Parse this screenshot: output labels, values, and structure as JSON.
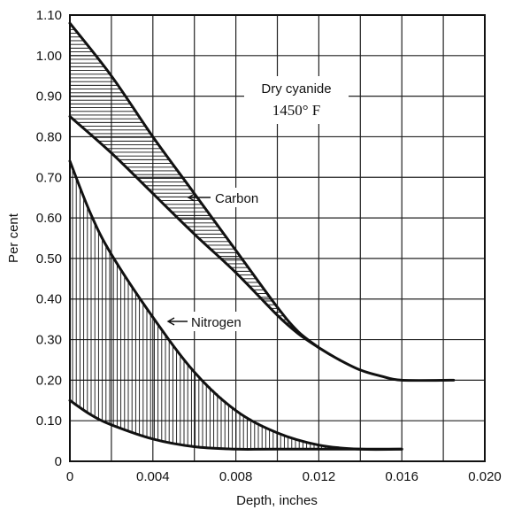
{
  "chart_data": {
    "type": "line",
    "title": "",
    "xlabel": "Depth, inches",
    "ylabel": "Per cent",
    "xlim": [
      0,
      0.02
    ],
    "ylim": [
      0,
      1.1
    ],
    "grid": true,
    "x_ticks": [
      {
        "value": 0,
        "label": "0"
      },
      {
        "value": 0.004,
        "label": "0.004"
      },
      {
        "value": 0.008,
        "label": "0.008"
      },
      {
        "value": 0.012,
        "label": "0.012"
      },
      {
        "value": 0.016,
        "label": "0.016"
      },
      {
        "value": 0.02,
        "label": "0.020"
      }
    ],
    "x_grid": [
      0,
      0.002,
      0.004,
      0.006,
      0.008,
      0.01,
      0.012,
      0.014,
      0.016,
      0.018,
      0.02
    ],
    "y_ticks": [
      {
        "value": 0,
        "label": "0"
      },
      {
        "value": 0.1,
        "label": "0.10"
      },
      {
        "value": 0.2,
        "label": "0.20"
      },
      {
        "value": 0.3,
        "label": "0.30"
      },
      {
        "value": 0.4,
        "label": "0.40"
      },
      {
        "value": 0.5,
        "label": "0.50"
      },
      {
        "value": 0.6,
        "label": "0.60"
      },
      {
        "value": 0.7,
        "label": "0.70"
      },
      {
        "value": 0.8,
        "label": "0.80"
      },
      {
        "value": 0.9,
        "label": "0.90"
      },
      {
        "value": 1.0,
        "label": "1.00"
      },
      {
        "value": 1.1,
        "label": "1.10"
      }
    ],
    "annotations": {
      "condition_line1": "Dry cyanide",
      "condition_line2": "1450° F",
      "carbon_label": "Carbon",
      "nitrogen_label": "Nitrogen"
    },
    "bands": [
      {
        "key": "carbon",
        "hatch": "horizontal",
        "upper": [
          [
            0,
            1.08
          ],
          [
            0.002,
            0.95
          ],
          [
            0.004,
            0.8
          ],
          [
            0.006,
            0.66
          ],
          [
            0.008,
            0.52
          ],
          [
            0.01,
            0.38
          ],
          [
            0.011,
            0.32
          ],
          [
            0.012,
            0.28
          ]
        ],
        "lower": [
          [
            0,
            0.85
          ],
          [
            0.002,
            0.76
          ],
          [
            0.004,
            0.66
          ],
          [
            0.006,
            0.56
          ],
          [
            0.008,
            0.465
          ],
          [
            0.01,
            0.36
          ],
          [
            0.011,
            0.315
          ],
          [
            0.012,
            0.28
          ],
          [
            0.013,
            0.25
          ],
          [
            0.014,
            0.225
          ],
          [
            0.015,
            0.21
          ],
          [
            0.016,
            0.2
          ],
          [
            0.0185,
            0.2
          ]
        ]
      },
      {
        "key": "nitrogen",
        "hatch": "vertical",
        "upper": [
          [
            0,
            0.74
          ],
          [
            0.001,
            0.61
          ],
          [
            0.002,
            0.51
          ],
          [
            0.004,
            0.355
          ],
          [
            0.006,
            0.22
          ],
          [
            0.008,
            0.125
          ],
          [
            0.01,
            0.07
          ],
          [
            0.012,
            0.04
          ],
          [
            0.014,
            0.03
          ],
          [
            0.016,
            0.03
          ]
        ],
        "lower": [
          [
            0,
            0.15
          ],
          [
            0.001,
            0.115
          ],
          [
            0.002,
            0.09
          ],
          [
            0.004,
            0.055
          ],
          [
            0.006,
            0.036
          ],
          [
            0.008,
            0.03
          ],
          [
            0.01,
            0.03
          ],
          [
            0.016,
            0.03
          ]
        ]
      }
    ]
  }
}
